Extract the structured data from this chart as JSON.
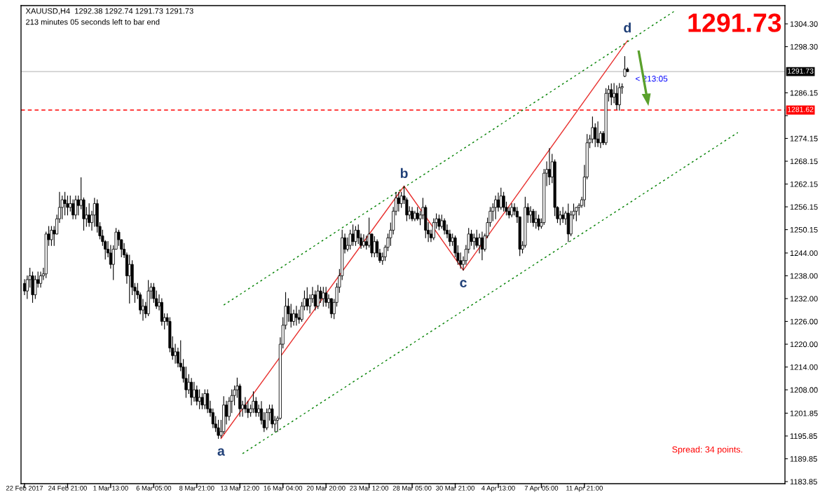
{
  "chart_data": {
    "type": "candlestick",
    "title": "XAUUSD,H4  1292.38 1292.74 1291.73 1291.73",
    "subtitle": "213 minutes 05 seconds left to bar end",
    "categories": [
      "22 Feb 2017",
      null,
      null,
      null,
      null,
      null,
      null,
      null,
      null,
      null,
      null,
      null,
      null,
      null,
      null,
      null,
      "24 Feb 21:00",
      null,
      null,
      null,
      null,
      null,
      null,
      null,
      null,
      null,
      null,
      null,
      null,
      null,
      null,
      null,
      "1 Mar 13:00",
      null,
      null,
      null,
      null,
      null,
      null,
      null,
      null,
      null,
      null,
      null,
      null,
      null,
      null,
      null,
      "6 Mar 05:00",
      null,
      null,
      null,
      null,
      null,
      null,
      null,
      null,
      null,
      null,
      null,
      null,
      null,
      null,
      null,
      "8 Mar 21:00",
      null,
      null,
      null,
      null,
      null,
      null,
      null,
      null,
      null,
      null,
      null,
      null,
      null,
      null,
      null,
      "13 Mar 12:00",
      null,
      null,
      null,
      null,
      null,
      null,
      null,
      null,
      null,
      null,
      null,
      null,
      null,
      null,
      null,
      "16 Mar 04:00",
      null,
      null,
      null,
      null,
      null,
      null,
      null,
      null,
      null,
      null,
      null,
      null,
      null,
      null,
      null,
      "20 Mar 20:00",
      null,
      null,
      null,
      null,
      null,
      null,
      null,
      null,
      null,
      null,
      null,
      null,
      null,
      null,
      null,
      "23 Mar 12:00",
      null,
      null,
      null,
      null,
      null,
      null,
      null,
      null,
      null,
      null,
      null,
      null,
      null,
      null,
      null,
      "28 Mar 05:00",
      null,
      null,
      null,
      null,
      null,
      null,
      null,
      null,
      null,
      null,
      null,
      null,
      null,
      null,
      null,
      "30 Mar 21:00",
      null,
      null,
      null,
      null,
      null,
      null,
      null,
      null,
      null,
      null,
      null,
      null,
      null,
      null,
      null,
      "4 Apr 13:00",
      null,
      null,
      null,
      null,
      null,
      null,
      null,
      null,
      null,
      null,
      null,
      null,
      null,
      null,
      null,
      "7 Apr 05:00",
      null,
      null,
      null,
      null,
      null,
      null,
      null,
      null,
      null,
      null,
      null,
      null,
      null,
      null,
      null,
      "11 Apr 21:00",
      null,
      null,
      null,
      null,
      null,
      null,
      null,
      null,
      null,
      null,
      null,
      null,
      null,
      null,
      null,
      null,
      null,
      null,
      null,
      null,
      null,
      null,
      null,
      null,
      null,
      null,
      null,
      null,
      null,
      null,
      null,
      null,
      null,
      null,
      null,
      null,
      null,
      null,
      null,
      null,
      null,
      null,
      null,
      null,
      null,
      null,
      null,
      null,
      null,
      null,
      null,
      null,
      null,
      null,
      null,
      null,
      null,
      null,
      null,
      null,
      null,
      null,
      null,
      null,
      null,
      null,
      null,
      null,
      null,
      null,
      null,
      null,
      null,
      null
    ],
    "ohlc": [
      [
        1236,
        1237,
        1233,
        1234
      ],
      [
        1234,
        1238,
        1232,
        1237
      ],
      [
        1237,
        1240,
        1235,
        1238
      ],
      [
        1238,
        1239,
        1231,
        1233
      ],
      [
        1233,
        1238,
        1232,
        1237
      ],
      [
        1237,
        1239,
        1235,
        1236
      ],
      [
        1236,
        1239,
        1235,
        1238
      ],
      [
        1238,
        1240,
        1237,
        1238.5
      ],
      [
        1238.5,
        1249.5,
        1237.5,
        1249
      ],
      [
        1249,
        1251,
        1246,
        1247.5
      ],
      [
        1247.5,
        1251,
        1246,
        1250
      ],
      [
        1250,
        1251,
        1246,
        1249
      ],
      [
        1249,
        1254,
        1249,
        1253
      ],
      [
        1253,
        1260,
        1252,
        1256
      ],
      [
        1256,
        1259,
        1253,
        1258
      ],
      [
        1258,
        1260,
        1254,
        1257
      ],
      [
        1257,
        1259,
        1254,
        1256
      ],
      [
        1256,
        1259,
        1255,
        1257
      ],
      [
        1257,
        1258,
        1253,
        1254
      ],
      [
        1254,
        1259,
        1253,
        1258
      ],
      [
        1258,
        1259,
        1254,
        1256.5
      ],
      [
        1256.5,
        1263.8,
        1255.6,
        1258
      ],
      [
        1258,
        1258.5,
        1250,
        1253
      ],
      [
        1253,
        1256,
        1251,
        1254
      ],
      [
        1254,
        1257,
        1251,
        1252
      ],
      [
        1252,
        1255,
        1250,
        1254
      ],
      [
        1254,
        1258.4,
        1251,
        1257
      ],
      [
        1257,
        1258,
        1249.5,
        1251
      ],
      [
        1251,
        1252,
        1247.7,
        1248.5
      ],
      [
        1248.5,
        1250,
        1246,
        1247
      ],
      [
        1247,
        1247.3,
        1242.4,
        1245
      ],
      [
        1245,
        1247,
        1243,
        1244
      ],
      [
        1244,
        1246,
        1240,
        1241
      ],
      [
        1241,
        1245.9,
        1237,
        1245
      ],
      [
        1245,
        1250.5,
        1245,
        1249.5
      ],
      [
        1249.5,
        1250,
        1246,
        1247.5
      ],
      [
        1247.5,
        1247.5,
        1243,
        1245
      ],
      [
        1245,
        1246.5,
        1242.8,
        1243.5
      ],
      [
        1243.5,
        1244,
        1236,
        1238
      ],
      [
        1238,
        1243.4,
        1230.8,
        1241
      ],
      [
        1241,
        1242,
        1233,
        1235
      ],
      [
        1235,
        1236,
        1231,
        1234
      ],
      [
        1234,
        1236,
        1232,
        1233
      ],
      [
        1233,
        1233.5,
        1228,
        1229
      ],
      [
        1229,
        1231.8,
        1226.3,
        1230
      ],
      [
        1230,
        1231,
        1227,
        1228
      ],
      [
        1228,
        1236.8,
        1227.5,
        1234
      ],
      [
        1234,
        1236,
        1232,
        1235
      ],
      [
        1235,
        1236,
        1231,
        1232
      ],
      [
        1232,
        1234,
        1229.4,
        1230
      ],
      [
        1230,
        1233,
        1229,
        1231
      ],
      [
        1231,
        1232,
        1225,
        1226
      ],
      [
        1226,
        1228,
        1224,
        1227
      ],
      [
        1227,
        1228,
        1225,
        1226
      ],
      [
        1226,
        1227,
        1218,
        1219
      ],
      [
        1219,
        1222,
        1216,
        1217
      ],
      [
        1217,
        1220,
        1215,
        1218
      ],
      [
        1218,
        1219,
        1214,
        1215
      ],
      [
        1215,
        1220.9,
        1213,
        1214
      ],
      [
        1214,
        1216,
        1210,
        1211
      ],
      [
        1211,
        1214,
        1206,
        1208
      ],
      [
        1208,
        1212,
        1207,
        1210
      ],
      [
        1210,
        1211,
        1204,
        1206
      ],
      [
        1206,
        1210,
        1205,
        1208
      ],
      [
        1208,
        1209,
        1204,
        1205
      ],
      [
        1205,
        1208,
        1203,
        1206
      ],
      [
        1206,
        1207,
        1203,
        1204
      ],
      [
        1204,
        1208,
        1203,
        1207
      ],
      [
        1207,
        1208,
        1202,
        1203
      ],
      [
        1203,
        1205,
        1201,
        1202
      ],
      [
        1202,
        1203,
        1198,
        1199
      ],
      [
        1199,
        1201,
        1197,
        1198
      ],
      [
        1198,
        1200,
        1195.2,
        1196
      ],
      [
        1196,
        1200,
        1195.5,
        1197
      ],
      [
        1197,
        1206.2,
        1196.5,
        1204
      ],
      [
        1204,
        1205,
        1199,
        1201
      ],
      [
        1201,
        1206,
        1200,
        1205
      ],
      [
        1205,
        1208,
        1202,
        1206.5
      ],
      [
        1206.5,
        1209,
        1204,
        1208
      ],
      [
        1208,
        1211.1,
        1206,
        1209
      ],
      [
        1209,
        1209.5,
        1201,
        1203
      ],
      [
        1203,
        1205,
        1201,
        1204
      ],
      [
        1204,
        1206,
        1202,
        1203
      ],
      [
        1203,
        1205,
        1200.7,
        1202
      ],
      [
        1202,
        1204,
        1201,
        1203
      ],
      [
        1203,
        1207.5,
        1202,
        1205
      ],
      [
        1205,
        1206,
        1201,
        1202
      ],
      [
        1202,
        1204,
        1201,
        1203
      ],
      [
        1203,
        1204.9,
        1199,
        1200
      ],
      [
        1200,
        1202,
        1197,
        1198
      ],
      [
        1198,
        1203,
        1197.5,
        1202
      ],
      [
        1202,
        1204,
        1200,
        1203
      ],
      [
        1203,
        1204,
        1198,
        1199
      ],
      [
        1199,
        1201,
        1197,
        1200
      ],
      [
        1200,
        1201,
        1197,
        1200.5
      ],
      [
        1200.5,
        1221.7,
        1200.3,
        1220
      ],
      [
        1220,
        1227,
        1219,
        1225
      ],
      [
        1225,
        1233.6,
        1224,
        1230
      ],
      [
        1230,
        1232,
        1226,
        1228
      ],
      [
        1228,
        1230.5,
        1224.5,
        1226
      ],
      [
        1226,
        1229,
        1225,
        1228
      ],
      [
        1228,
        1230,
        1225,
        1227
      ],
      [
        1227,
        1229,
        1225.5,
        1226.5
      ],
      [
        1226.5,
        1231,
        1226,
        1230
      ],
      [
        1230,
        1234,
        1229,
        1232
      ],
      [
        1232,
        1234.9,
        1229,
        1230
      ],
      [
        1230,
        1233,
        1228.2,
        1232
      ],
      [
        1232,
        1235,
        1231,
        1233
      ],
      [
        1233,
        1234,
        1229,
        1230
      ],
      [
        1230,
        1235.5,
        1229.4,
        1234
      ],
      [
        1234,
        1235,
        1231,
        1232
      ],
      [
        1232,
        1235,
        1230,
        1233.5
      ],
      [
        1233.5,
        1235,
        1230,
        1231
      ],
      [
        1231,
        1233,
        1229.5,
        1232
      ],
      [
        1232,
        1232,
        1227,
        1228
      ],
      [
        1228,
        1231.8,
        1226.7,
        1231
      ],
      [
        1231,
        1236,
        1230,
        1235
      ],
      [
        1235,
        1239.7,
        1233.6,
        1238
      ],
      [
        1238,
        1250,
        1237,
        1248
      ],
      [
        1248,
        1249,
        1244,
        1245
      ],
      [
        1245,
        1248,
        1244.5,
        1246
      ],
      [
        1246,
        1250,
        1245,
        1249
      ],
      [
        1249,
        1251.4,
        1246,
        1247
      ],
      [
        1247,
        1251,
        1246,
        1250
      ],
      [
        1250,
        1251.4,
        1246.5,
        1248
      ],
      [
        1248,
        1249,
        1245.2,
        1246
      ],
      [
        1246,
        1248.8,
        1245.5,
        1247
      ],
      [
        1247,
        1248.5,
        1245,
        1246
      ],
      [
        1246,
        1253.2,
        1245.5,
        1249
      ],
      [
        1249,
        1249,
        1243,
        1244
      ],
      [
        1244,
        1248.3,
        1243,
        1247
      ],
      [
        1247,
        1247.5,
        1243,
        1244
      ],
      [
        1244,
        1245,
        1241.5,
        1242
      ],
      [
        1242,
        1244,
        1241,
        1243
      ],
      [
        1243,
        1246,
        1242,
        1245.5
      ],
      [
        1245.5,
        1249,
        1244.6,
        1248
      ],
      [
        1248,
        1251.9,
        1246,
        1250
      ],
      [
        1250,
        1256,
        1249,
        1255
      ],
      [
        1255,
        1260,
        1254,
        1258.5
      ],
      [
        1258.5,
        1260,
        1255,
        1257
      ],
      [
        1257,
        1260,
        1256,
        1259
      ],
      [
        1259,
        1261.6,
        1257,
        1258
      ],
      [
        1258,
        1258.5,
        1252.5,
        1254
      ],
      [
        1254,
        1256.2,
        1253,
        1255
      ],
      [
        1255,
        1256,
        1252.5,
        1253
      ],
      [
        1253,
        1255,
        1252.5,
        1254.5
      ],
      [
        1254.5,
        1256,
        1252.6,
        1253
      ],
      [
        1253,
        1255,
        1251.4,
        1254
      ],
      [
        1254,
        1258.4,
        1253,
        1256
      ],
      [
        1256,
        1256.5,
        1248,
        1250
      ],
      [
        1250,
        1252,
        1247,
        1249
      ],
      [
        1249,
        1250,
        1247,
        1248
      ],
      [
        1248,
        1253,
        1247.5,
        1252
      ],
      [
        1252,
        1254.3,
        1250.5,
        1253
      ],
      [
        1253,
        1254,
        1250.1,
        1251
      ],
      [
        1251,
        1254,
        1250.5,
        1252.5
      ],
      [
        1252.5,
        1253,
        1249,
        1250
      ],
      [
        1250,
        1251.4,
        1248,
        1249
      ],
      [
        1249,
        1250,
        1245.9,
        1247
      ],
      [
        1247,
        1249,
        1246,
        1248
      ],
      [
        1248,
        1248.5,
        1243,
        1244
      ],
      [
        1244,
        1245.9,
        1241,
        1242
      ],
      [
        1242,
        1244,
        1240,
        1241
      ],
      [
        1241,
        1243,
        1239.5,
        1242
      ],
      [
        1242,
        1246,
        1241,
        1245
      ],
      [
        1245,
        1250.5,
        1244,
        1249
      ],
      [
        1249,
        1250,
        1246,
        1247
      ],
      [
        1247,
        1249,
        1245,
        1248
      ],
      [
        1248,
        1250,
        1245.5,
        1246
      ],
      [
        1246,
        1249,
        1244,
        1248
      ],
      [
        1248,
        1249.5,
        1242.2,
        1245
      ],
      [
        1245,
        1249,
        1244.5,
        1248.5
      ],
      [
        1248.5,
        1253.2,
        1248,
        1252
      ],
      [
        1252,
        1256,
        1251,
        1255
      ],
      [
        1255,
        1257,
        1252.5,
        1256
      ],
      [
        1256,
        1259,
        1253,
        1258
      ],
      [
        1258,
        1259.8,
        1255,
        1256
      ],
      [
        1256,
        1261.1,
        1255.5,
        1259
      ],
      [
        1259,
        1260,
        1255,
        1256
      ],
      [
        1256,
        1257.4,
        1254,
        1255
      ],
      [
        1255,
        1256,
        1253.2,
        1254
      ],
      [
        1254,
        1257,
        1253.5,
        1256
      ],
      [
        1256,
        1257,
        1254,
        1255
      ],
      [
        1255,
        1256,
        1252,
        1253.5
      ],
      [
        1253.5,
        1253.5,
        1243.3,
        1245
      ],
      [
        1245,
        1247,
        1244,
        1246
      ],
      [
        1246,
        1258.7,
        1245.5,
        1256
      ],
      [
        1256,
        1257,
        1252,
        1254
      ],
      [
        1254,
        1256.2,
        1252,
        1255
      ],
      [
        1255,
        1255.5,
        1251,
        1252
      ],
      [
        1252,
        1255,
        1250.5,
        1253
      ],
      [
        1253,
        1254,
        1250.1,
        1251
      ],
      [
        1251,
        1253,
        1250.5,
        1252
      ],
      [
        1252,
        1266,
        1251.5,
        1265
      ],
      [
        1265,
        1268,
        1261.7,
        1266
      ],
      [
        1266,
        1271.5,
        1262,
        1264
      ],
      [
        1264,
        1270,
        1262.5,
        1268
      ],
      [
        1268,
        1268.5,
        1253.8,
        1256
      ],
      [
        1256,
        1256.2,
        1252,
        1253
      ],
      [
        1253,
        1255,
        1251.4,
        1254
      ],
      [
        1254,
        1256,
        1252,
        1253
      ],
      [
        1253,
        1255,
        1251.5,
        1254.5
      ],
      [
        1254.5,
        1256.9,
        1247,
        1249
      ],
      [
        1249,
        1255,
        1248.5,
        1254
      ],
      [
        1254,
        1256.9,
        1253,
        1255
      ],
      [
        1255,
        1256,
        1252.5,
        1256
      ],
      [
        1256,
        1257,
        1254,
        1256.5
      ],
      [
        1256.5,
        1258.7,
        1256,
        1258
      ],
      [
        1258,
        1267.1,
        1256.2,
        1264
      ],
      [
        1264,
        1275.2,
        1263.5,
        1273
      ],
      [
        1273,
        1275,
        1271.7,
        1274
      ],
      [
        1274,
        1279.8,
        1273,
        1277
      ],
      [
        1277,
        1278,
        1272,
        1274
      ],
      [
        1274,
        1278.5,
        1272,
        1273
      ],
      [
        1273,
        1276,
        1271.7,
        1275.5
      ],
      [
        1275.5,
        1276,
        1272.5,
        1273
      ],
      [
        1273,
        1287.3,
        1272.5,
        1286
      ],
      [
        1286,
        1288,
        1284,
        1287
      ],
      [
        1287,
        1288.5,
        1283,
        1285
      ],
      [
        1285,
        1288.6,
        1283.5,
        1286
      ],
      [
        1286,
        1288,
        1281.8,
        1283
      ],
      [
        1283,
        1288.6,
        1281.6,
        1287.5
      ],
      [
        1287.5,
        1288.5,
        1286,
        1287.8
      ],
      [
        1290.5,
        1295.7,
        1290.4,
        1292.4
      ],
      [
        1292.38,
        1292.74,
        1291.73,
        1291.73
      ],
      null,
      null,
      null,
      null,
      null,
      null,
      null,
      null,
      null,
      null,
      null,
      null,
      null,
      null,
      null,
      null,
      null,
      null,
      null,
      null,
      null,
      null,
      null,
      null,
      null,
      null,
      null,
      null,
      null,
      null,
      null,
      null,
      null,
      null,
      null,
      null,
      null,
      null,
      null,
      null,
      null,
      null,
      null,
      null,
      null,
      null,
      null,
      null,
      null,
      null,
      null,
      null,
      null,
      null,
      null,
      null,
      null,
      null
    ],
    "color": "#000000",
    "series": [
      {
        "type": "line",
        "color": "#e8312f",
        "line_style": "solid",
        "values": [
          null,
          null,
          null,
          null,
          null,
          null,
          null,
          null,
          null,
          null,
          null,
          null,
          null,
          null,
          null,
          null,
          null,
          null,
          null,
          null,
          null,
          null,
          null,
          null,
          null,
          null,
          null,
          null,
          null,
          null,
          null,
          null,
          null,
          null,
          null,
          null,
          null,
          null,
          null,
          null,
          null,
          null,
          null,
          null,
          null,
          null,
          null,
          null,
          null,
          null,
          null,
          null,
          null,
          null,
          null,
          null,
          null,
          null,
          null,
          null,
          null,
          null,
          null,
          null,
          null,
          null,
          null,
          null,
          null,
          null,
          null,
          null,
          null,
          1195.2,
          null,
          null,
          null,
          null,
          null,
          null,
          null,
          null,
          null,
          null,
          null,
          null,
          null,
          null,
          null,
          null,
          null,
          null,
          null,
          null,
          null,
          null,
          null,
          null,
          null,
          null,
          null,
          null,
          null,
          null,
          null,
          null,
          null,
          null,
          null,
          null,
          null,
          null,
          null,
          null,
          null,
          null,
          null,
          null,
          null,
          null,
          null,
          null,
          null,
          null,
          null,
          null,
          null,
          null,
          null,
          null,
          null,
          null,
          null,
          null,
          null,
          null,
          null,
          null,
          null,
          null,
          null,
          1261.6,
          null,
          null,
          null,
          null,
          null,
          null,
          null,
          null,
          null,
          null,
          null,
          null,
          null,
          null,
          null,
          null,
          null,
          null,
          null,
          null,
          null,
          1239.5,
          null,
          null,
          null,
          null,
          null,
          null,
          null,
          null,
          null,
          null,
          null,
          null,
          null,
          null,
          null,
          null,
          null,
          null,
          null,
          null,
          null,
          null,
          null,
          null,
          null,
          null,
          null,
          null,
          null,
          null,
          null,
          null,
          null,
          null,
          null,
          null,
          null,
          null,
          null,
          null,
          null,
          null,
          null,
          null,
          null,
          null,
          null,
          null,
          null,
          null,
          null,
          null,
          null,
          null,
          null,
          null,
          null,
          null,
          null,
          null,
          1299.9,
          null,
          null,
          null,
          null,
          null,
          null,
          null,
          null,
          null,
          null,
          null,
          null,
          null,
          null,
          null,
          null,
          null,
          null,
          null,
          null,
          null,
          null,
          null,
          null,
          null,
          null,
          null,
          null,
          null,
          null,
          null,
          null,
          null,
          null,
          null,
          null,
          null,
          null,
          null,
          null,
          null,
          null,
          null,
          null,
          null,
          null,
          null,
          null,
          null,
          null,
          null,
          null,
          null,
          null,
          null,
          null,
          null,
          null
        ]
      },
      {
        "type": "line",
        "color": "#008000",
        "line_style": "dotted",
        "values": [
          null,
          null,
          null,
          null,
          null,
          null,
          null,
          null,
          null,
          null,
          null,
          null,
          null,
          null,
          null,
          null,
          null,
          null,
          null,
          null,
          null,
          null,
          null,
          null,
          null,
          null,
          null,
          null,
          null,
          null,
          null,
          null,
          null,
          null,
          null,
          null,
          null,
          null,
          null,
          null,
          null,
          null,
          null,
          null,
          null,
          null,
          null,
          null,
          null,
          null,
          null,
          null,
          null,
          null,
          null,
          null,
          null,
          null,
          null,
          null,
          null,
          null,
          null,
          null,
          null,
          null,
          null,
          null,
          null,
          null,
          null,
          null,
          null,
          null,
          1230.3,
          null,
          null,
          null,
          null,
          null,
          null,
          null,
          null,
          null,
          null,
          null,
          null,
          null,
          null,
          null,
          null,
          null,
          null,
          null,
          null,
          null,
          null,
          null,
          null,
          null,
          null,
          null,
          null,
          null,
          null,
          null,
          null,
          null,
          null,
          null,
          null,
          null,
          null,
          null,
          null,
          null,
          null,
          null,
          null,
          null,
          null,
          null,
          null,
          null,
          null,
          null,
          null,
          null,
          null,
          null,
          null,
          null,
          null,
          null,
          null,
          null,
          null,
          null,
          null,
          null,
          null,
          null,
          null,
          null,
          null,
          null,
          null,
          null,
          null,
          null,
          null,
          null,
          null,
          null,
          null,
          null,
          null,
          null,
          null,
          null,
          null,
          null,
          null,
          null,
          null,
          null,
          null,
          null,
          null,
          null,
          null,
          null,
          null,
          null,
          null,
          null,
          null,
          null,
          null,
          null,
          null,
          null,
          null,
          null,
          null,
          null,
          null,
          null,
          null,
          null,
          null,
          null,
          null,
          null,
          null,
          null,
          null,
          null,
          null,
          null,
          null,
          null,
          null,
          null,
          null,
          null,
          null,
          null,
          null,
          null,
          null,
          null,
          null,
          null,
          null,
          null,
          null,
          null,
          null,
          null,
          null,
          null,
          null,
          null,
          null,
          null,
          null,
          null,
          null,
          null,
          null,
          null,
          null,
          null,
          null,
          null,
          null,
          null,
          null,
          null,
          null,
          null,
          1307.9,
          null,
          null,
          null,
          null,
          null,
          null,
          null,
          null,
          null,
          null,
          null,
          null,
          null,
          null,
          null,
          null,
          null,
          null,
          null,
          null,
          null,
          null,
          null,
          null,
          null,
          null,
          null,
          null,
          null,
          null,
          null,
          null,
          null,
          null,
          null,
          null,
          null,
          null,
          null,
          null
        ]
      },
      {
        "type": "line",
        "color": "#008000",
        "line_style": "dotted",
        "values": [
          null,
          null,
          null,
          null,
          null,
          null,
          null,
          null,
          null,
          null,
          null,
          null,
          null,
          null,
          null,
          null,
          null,
          null,
          null,
          null,
          null,
          null,
          null,
          null,
          null,
          null,
          null,
          null,
          null,
          null,
          null,
          null,
          null,
          null,
          null,
          null,
          null,
          null,
          null,
          null,
          null,
          null,
          null,
          null,
          null,
          null,
          null,
          null,
          null,
          null,
          null,
          null,
          null,
          null,
          null,
          null,
          null,
          null,
          null,
          null,
          null,
          null,
          null,
          null,
          null,
          null,
          null,
          null,
          null,
          null,
          null,
          null,
          null,
          null,
          null,
          null,
          null,
          null,
          null,
          null,
          null,
          1191.2,
          null,
          null,
          null,
          null,
          null,
          null,
          null,
          null,
          null,
          null,
          null,
          null,
          null,
          null,
          null,
          null,
          null,
          null,
          null,
          null,
          null,
          null,
          null,
          null,
          null,
          null,
          null,
          null,
          null,
          null,
          null,
          null,
          null,
          null,
          null,
          null,
          null,
          null,
          null,
          null,
          null,
          null,
          null,
          null,
          null,
          null,
          null,
          null,
          null,
          null,
          null,
          null,
          null,
          null,
          null,
          null,
          null,
          null,
          null,
          null,
          null,
          null,
          null,
          null,
          null,
          null,
          null,
          null,
          null,
          null,
          null,
          null,
          null,
          null,
          null,
          null,
          null,
          null,
          null,
          null,
          null,
          null,
          null,
          null,
          null,
          null,
          null,
          null,
          null,
          null,
          null,
          null,
          null,
          null,
          null,
          null,
          null,
          null,
          null,
          null,
          null,
          null,
          null,
          null,
          null,
          null,
          null,
          null,
          null,
          null,
          null,
          null,
          null,
          null,
          null,
          null,
          null,
          null,
          null,
          null,
          null,
          null,
          null,
          null,
          null,
          null,
          null,
          null,
          null,
          null,
          null,
          null,
          null,
          null,
          null,
          null,
          null,
          null,
          null,
          null,
          null,
          null,
          null,
          null,
          null,
          null,
          null,
          null,
          null,
          null,
          null,
          null,
          null,
          null,
          null,
          null,
          null,
          null,
          null,
          null,
          null,
          null,
          null,
          null,
          null,
          null,
          null,
          null,
          null,
          null,
          null,
          null,
          null,
          null,
          null,
          null,
          null,
          null,
          null,
          null,
          null,
          null,
          null,
          1275.7,
          null,
          null,
          null,
          null,
          null,
          null,
          null,
          null,
          null,
          null,
          null,
          null,
          null,
          null,
          null,
          null,
          null
        ]
      }
    ],
    "ylim": [
      1183.3,
      1309.1
    ],
    "yticks": [
      {
        "value": 1304.3,
        "label": "1304.30"
      },
      {
        "value": 1298.3,
        "label": "1298.30"
      },
      1286.15,
      {
        "value": 1280.15,
        "label": null
      },
      1274.15,
      1268.15,
      1262.15,
      1256.15,
      1250.15,
      {
        "value": 1244.0,
        "label": "1244.00"
      },
      {
        "value": 1238.0,
        "label": "1238.00"
      },
      {
        "value": 1232.0,
        "label": "1232.00"
      },
      {
        "value": 1226.0,
        "label": "1226.00"
      },
      {
        "value": 1220.0,
        "label": "1220.00"
      },
      {
        "value": 1214.0,
        "label": "1214.00"
      },
      {
        "value": 1208.0,
        "label": "1208.00"
      },
      1201.85,
      1195.85,
      1189.85,
      1183.85
    ],
    "ref_lines": [
      {
        "axis": "y",
        "value": 1291.73,
        "label": "1291.73",
        "color": "#c0c0c0",
        "line_style": "solid"
      },
      {
        "axis": "y",
        "value": 1281.62,
        "label": "1281.62",
        "color": "#ff0000",
        "line_style": "dashed"
      }
    ],
    "annotations": [
      "a",
      "b",
      "c",
      "d",
      "< 213:05",
      "1291.73",
      "Spread: 34 points."
    ],
    "grid": false,
    "legend": false
  }
}
